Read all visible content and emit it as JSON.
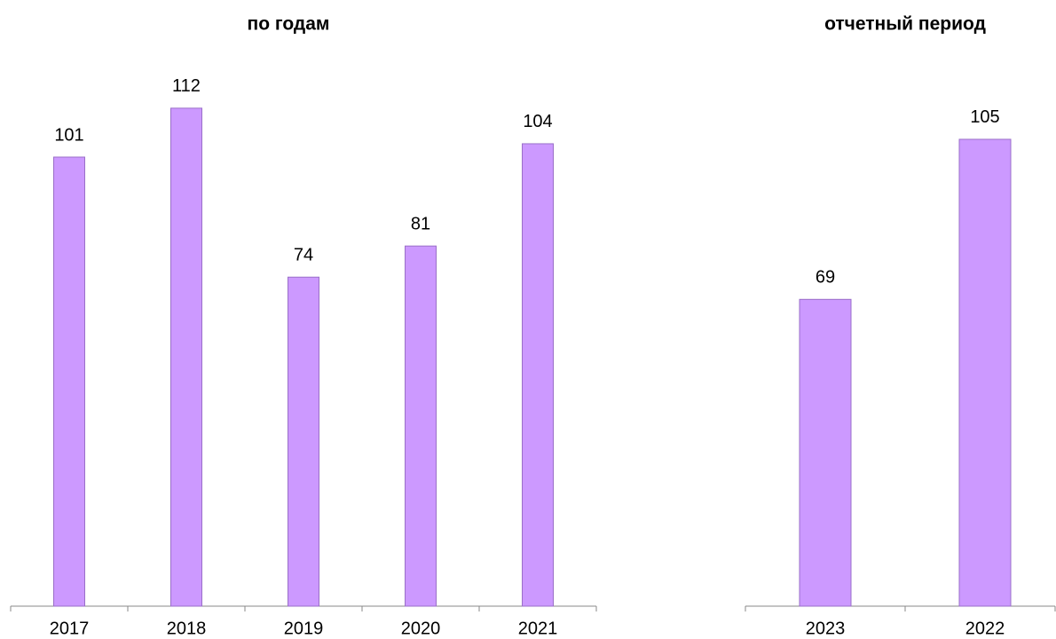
{
  "chart_data": [
    {
      "type": "bar",
      "title": "по годам",
      "categories": [
        "2017",
        "2018",
        "2019",
        "2020",
        "2021"
      ],
      "values": [
        101,
        112,
        74,
        81,
        104
      ],
      "color": "#cc99ff"
    },
    {
      "type": "bar",
      "title": "отчетный период",
      "categories": [
        "2023",
        "2022"
      ],
      "values": [
        69,
        105
      ],
      "color": "#cc99ff"
    }
  ]
}
